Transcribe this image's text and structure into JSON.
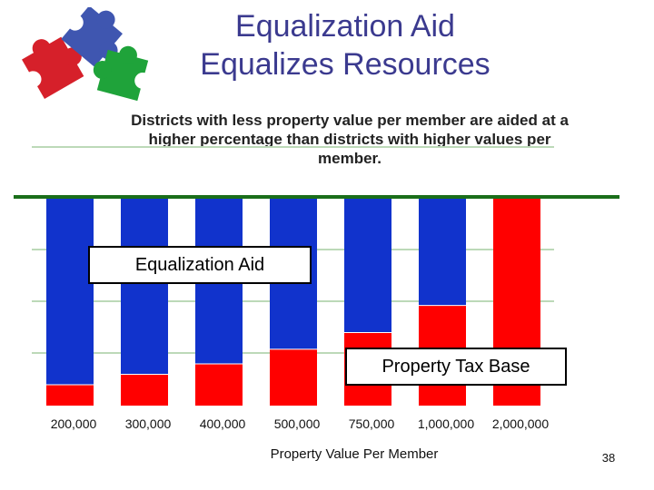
{
  "header": {
    "title_line1": "Equalization Aid",
    "title_line2": "Equalizes Resources",
    "subtitle": "Districts with less property value per member are aided at a higher percentage than districts with higher values per member."
  },
  "logo": {
    "icon": "puzzle-pieces-icon",
    "colors": [
      "#d6202a",
      "#3f56b0",
      "#1fa33a"
    ]
  },
  "colors": {
    "aid": "#1133cc",
    "base": "#ff0000",
    "frame": "#1a6e1a",
    "grid": "#bcd9b8"
  },
  "chart_data": {
    "type": "bar",
    "stacked": true,
    "categories": [
      "200,000",
      "300,000",
      "400,000",
      "500,000",
      "750,000",
      "1,000,000",
      "2,000,000"
    ],
    "series": [
      {
        "name": "Property Tax Base",
        "values": [
          10,
          15,
          20,
          27,
          35,
          48,
          100
        ],
        "color": "#ff0000"
      },
      {
        "name": "Equalization Aid",
        "values": [
          90,
          85,
          80,
          73,
          65,
          52,
          0
        ],
        "color": "#1133cc"
      }
    ],
    "xlabel": "Property Value Per Member",
    "ylabel": "",
    "ylim": [
      0,
      100
    ],
    "grid": true,
    "annotations": [
      "Equalization Aid",
      "Property Tax Base"
    ]
  },
  "footer": {
    "page_number": "38"
  }
}
